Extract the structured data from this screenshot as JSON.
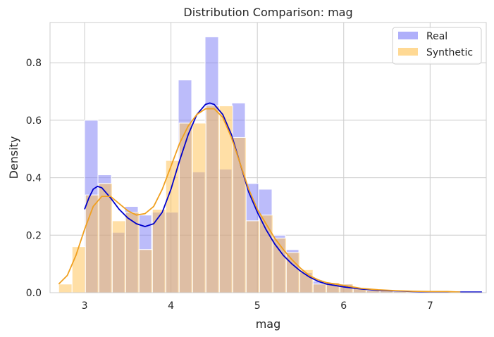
{
  "chart_data": {
    "type": "histogram",
    "title": "Distribution Comparison: mag",
    "xlabel": "mag",
    "ylabel": "Density",
    "xlim": [
      2.6,
      7.65
    ],
    "ylim": [
      0,
      0.94
    ],
    "xticks": [
      3,
      4,
      5,
      6,
      7
    ],
    "yticks": [
      0.0,
      0.2,
      0.4,
      0.6,
      0.8
    ],
    "grid": true,
    "legend_position": "top-right",
    "series": [
      {
        "name": "Real",
        "color": "#7a7af6",
        "kde_color": "#0000cc",
        "bins": [
          {
            "x0": 3.0,
            "x1": 3.155,
            "y": 0.6
          },
          {
            "x0": 3.155,
            "x1": 3.31,
            "y": 0.41
          },
          {
            "x0": 3.31,
            "x1": 3.465,
            "y": 0.21
          },
          {
            "x0": 3.465,
            "x1": 3.62,
            "y": 0.3
          },
          {
            "x0": 3.62,
            "x1": 3.775,
            "y": 0.27
          },
          {
            "x0": 3.775,
            "x1": 3.93,
            "y": 0.28
          },
          {
            "x0": 3.93,
            "x1": 4.085,
            "y": 0.28
          },
          {
            "x0": 4.085,
            "x1": 4.24,
            "y": 0.74
          },
          {
            "x0": 4.24,
            "x1": 4.395,
            "y": 0.42
          },
          {
            "x0": 4.395,
            "x1": 4.55,
            "y": 0.89
          },
          {
            "x0": 4.55,
            "x1": 4.705,
            "y": 0.43
          },
          {
            "x0": 4.705,
            "x1": 4.86,
            "y": 0.66
          },
          {
            "x0": 4.86,
            "x1": 5.015,
            "y": 0.38
          },
          {
            "x0": 5.015,
            "x1": 5.17,
            "y": 0.36
          },
          {
            "x0": 5.17,
            "x1": 5.325,
            "y": 0.2
          },
          {
            "x0": 5.325,
            "x1": 5.48,
            "y": 0.15
          },
          {
            "x0": 5.48,
            "x1": 5.635,
            "y": 0.07
          },
          {
            "x0": 5.635,
            "x1": 5.79,
            "y": 0.04
          },
          {
            "x0": 5.79,
            "x1": 5.945,
            "y": 0.035
          },
          {
            "x0": 5.945,
            "x1": 6.1,
            "y": 0.03
          },
          {
            "x0": 6.1,
            "x1": 6.255,
            "y": 0.015
          },
          {
            "x0": 6.255,
            "x1": 6.41,
            "y": 0.01
          },
          {
            "x0": 6.41,
            "x1": 6.565,
            "y": 0.008
          },
          {
            "x0": 6.565,
            "x1": 6.72,
            "y": 0.006
          },
          {
            "x0": 6.72,
            "x1": 6.875,
            "y": 0.005
          },
          {
            "x0": 6.875,
            "x1": 7.03,
            "y": 0.004
          },
          {
            "x0": 7.03,
            "x1": 7.185,
            "y": 0.003
          },
          {
            "x0": 7.185,
            "x1": 7.34,
            "y": 0.003
          },
          {
            "x0": 7.34,
            "x1": 7.495,
            "y": 0.002
          },
          {
            "x0": 7.495,
            "x1": 7.62,
            "y": 0.003
          }
        ],
        "kde": [
          [
            3.0,
            0.29
          ],
          [
            3.05,
            0.33
          ],
          [
            3.1,
            0.36
          ],
          [
            3.15,
            0.37
          ],
          [
            3.2,
            0.365
          ],
          [
            3.3,
            0.33
          ],
          [
            3.4,
            0.29
          ],
          [
            3.5,
            0.26
          ],
          [
            3.6,
            0.24
          ],
          [
            3.7,
            0.23
          ],
          [
            3.8,
            0.24
          ],
          [
            3.9,
            0.28
          ],
          [
            4.0,
            0.36
          ],
          [
            4.1,
            0.46
          ],
          [
            4.2,
            0.55
          ],
          [
            4.3,
            0.62
          ],
          [
            4.4,
            0.655
          ],
          [
            4.45,
            0.66
          ],
          [
            4.5,
            0.655
          ],
          [
            4.6,
            0.62
          ],
          [
            4.7,
            0.55
          ],
          [
            4.8,
            0.45
          ],
          [
            4.9,
            0.35
          ],
          [
            5.0,
            0.28
          ],
          [
            5.1,
            0.22
          ],
          [
            5.2,
            0.17
          ],
          [
            5.3,
            0.13
          ],
          [
            5.4,
            0.1
          ],
          [
            5.5,
            0.075
          ],
          [
            5.6,
            0.055
          ],
          [
            5.7,
            0.04
          ],
          [
            5.8,
            0.03
          ],
          [
            5.9,
            0.025
          ],
          [
            6.0,
            0.02
          ],
          [
            6.2,
            0.013
          ],
          [
            6.4,
            0.008
          ],
          [
            6.6,
            0.006
          ],
          [
            6.8,
            0.004
          ],
          [
            7.0,
            0.003
          ],
          [
            7.2,
            0.002
          ],
          [
            7.4,
            0.002
          ],
          [
            7.6,
            0.002
          ]
        ]
      },
      {
        "name": "Synthetic",
        "color": "#ffc04d",
        "kde_color": "#f0a020",
        "bins": [
          {
            "x0": 2.7,
            "x1": 2.855,
            "y": 0.03
          },
          {
            "x0": 2.855,
            "x1": 3.01,
            "y": 0.16
          },
          {
            "x0": 3.01,
            "x1": 3.165,
            "y": 0.34
          },
          {
            "x0": 3.165,
            "x1": 3.32,
            "y": 0.38
          },
          {
            "x0": 3.32,
            "x1": 3.475,
            "y": 0.25
          },
          {
            "x0": 3.475,
            "x1": 3.63,
            "y": 0.28
          },
          {
            "x0": 3.63,
            "x1": 3.785,
            "y": 0.15
          },
          {
            "x0": 3.785,
            "x1": 3.94,
            "y": 0.29
          },
          {
            "x0": 3.94,
            "x1": 4.095,
            "y": 0.46
          },
          {
            "x0": 4.095,
            "x1": 4.25,
            "y": 0.59
          },
          {
            "x0": 4.25,
            "x1": 4.405,
            "y": 0.59
          },
          {
            "x0": 4.405,
            "x1": 4.56,
            "y": 0.65
          },
          {
            "x0": 4.56,
            "x1": 4.715,
            "y": 0.65
          },
          {
            "x0": 4.715,
            "x1": 4.87,
            "y": 0.54
          },
          {
            "x0": 4.87,
            "x1": 5.025,
            "y": 0.25
          },
          {
            "x0": 5.025,
            "x1": 5.18,
            "y": 0.27
          },
          {
            "x0": 5.18,
            "x1": 5.335,
            "y": 0.19
          },
          {
            "x0": 5.335,
            "x1": 5.49,
            "y": 0.14
          },
          {
            "x0": 5.49,
            "x1": 5.645,
            "y": 0.08
          },
          {
            "x0": 5.645,
            "x1": 5.8,
            "y": 0.03
          },
          {
            "x0": 5.8,
            "x1": 5.955,
            "y": 0.035
          },
          {
            "x0": 5.955,
            "x1": 6.11,
            "y": 0.03
          },
          {
            "x0": 6.11,
            "x1": 6.265,
            "y": 0.015
          },
          {
            "x0": 6.265,
            "x1": 6.42,
            "y": 0.008
          },
          {
            "x0": 6.42,
            "x1": 6.575,
            "y": 0.007
          },
          {
            "x0": 6.575,
            "x1": 6.73,
            "y": 0.004
          },
          {
            "x0": 6.73,
            "x1": 6.885,
            "y": 0.003
          },
          {
            "x0": 6.885,
            "x1": 7.04,
            "y": 0.003
          },
          {
            "x0": 7.04,
            "x1": 7.195,
            "y": 0.003
          },
          {
            "x0": 7.195,
            "x1": 7.35,
            "y": 0.002
          }
        ],
        "kde": [
          [
            2.7,
            0.03
          ],
          [
            2.8,
            0.06
          ],
          [
            2.9,
            0.13
          ],
          [
            3.0,
            0.22
          ],
          [
            3.1,
            0.3
          ],
          [
            3.2,
            0.335
          ],
          [
            3.3,
            0.335
          ],
          [
            3.4,
            0.31
          ],
          [
            3.5,
            0.285
          ],
          [
            3.6,
            0.27
          ],
          [
            3.7,
            0.275
          ],
          [
            3.8,
            0.3
          ],
          [
            3.9,
            0.36
          ],
          [
            4.0,
            0.44
          ],
          [
            4.1,
            0.52
          ],
          [
            4.2,
            0.58
          ],
          [
            4.3,
            0.62
          ],
          [
            4.4,
            0.64
          ],
          [
            4.5,
            0.64
          ],
          [
            4.6,
            0.61
          ],
          [
            4.7,
            0.54
          ],
          [
            4.8,
            0.45
          ],
          [
            4.9,
            0.36
          ],
          [
            5.0,
            0.29
          ],
          [
            5.1,
            0.24
          ],
          [
            5.2,
            0.19
          ],
          [
            5.3,
            0.15
          ],
          [
            5.4,
            0.115
          ],
          [
            5.5,
            0.085
          ],
          [
            5.6,
            0.06
          ],
          [
            5.7,
            0.045
          ],
          [
            5.8,
            0.035
          ],
          [
            5.9,
            0.03
          ],
          [
            6.0,
            0.025
          ],
          [
            6.2,
            0.015
          ],
          [
            6.4,
            0.01
          ],
          [
            6.6,
            0.007
          ],
          [
            6.8,
            0.005
          ],
          [
            7.0,
            0.004
          ],
          [
            7.2,
            0.004
          ],
          [
            7.35,
            0.002
          ]
        ]
      }
    ]
  }
}
